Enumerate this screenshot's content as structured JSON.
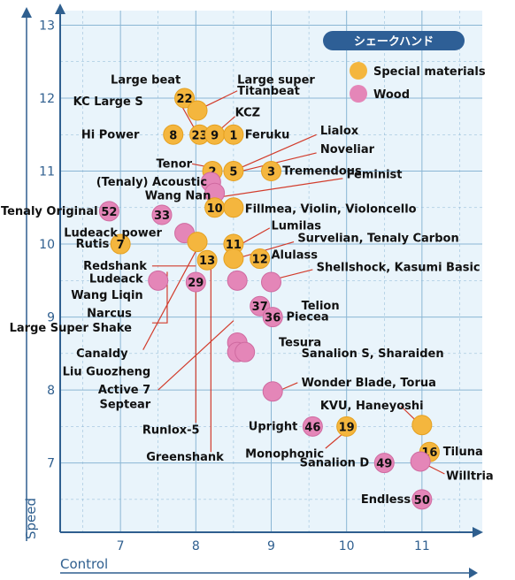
{
  "chart_data": {
    "type": "scatter",
    "xlabel": "Control",
    "ylabel": "Speed",
    "xlim": [
      6.2,
      11.8
    ],
    "ylim": [
      6.05,
      13.2
    ],
    "x_ticks": [
      7,
      8,
      9,
      10,
      11
    ],
    "y_ticks": [
      7,
      8,
      9,
      10,
      11,
      12,
      13
    ],
    "grid": true,
    "legend": {
      "title": "シェークハンド",
      "position": "top-right",
      "entries": [
        {
          "name": "Special materials",
          "color": "#f4b63e"
        },
        {
          "name": "Wood",
          "color": "#e486b8"
        }
      ]
    },
    "points": [
      {
        "series": 0,
        "x": 7.85,
        "y": 12.0,
        "num": "22"
      },
      {
        "series": 0,
        "x": 8.02,
        "y": 11.83,
        "num": ""
      },
      {
        "series": 0,
        "x": 7.7,
        "y": 11.5,
        "num": "8"
      },
      {
        "series": 0,
        "x": 8.05,
        "y": 11.5,
        "num": "23"
      },
      {
        "series": 0,
        "x": 8.25,
        "y": 11.5,
        "num": "9"
      },
      {
        "series": 0,
        "x": 8.5,
        "y": 11.5,
        "num": "1"
      },
      {
        "series": 0,
        "x": 8.22,
        "y": 11.0,
        "num": "2"
      },
      {
        "series": 0,
        "x": 8.5,
        "y": 11.0,
        "num": "5"
      },
      {
        "series": 0,
        "x": 9.0,
        "y": 11.0,
        "num": "3"
      },
      {
        "series": 1,
        "x": 8.2,
        "y": 10.85,
        "num": ""
      },
      {
        "series": 1,
        "x": 8.25,
        "y": 10.7,
        "num": ""
      },
      {
        "series": 0,
        "x": 8.25,
        "y": 10.5,
        "num": "10"
      },
      {
        "series": 0,
        "x": 8.5,
        "y": 10.5,
        "num": ""
      },
      {
        "series": 1,
        "x": 6.85,
        "y": 10.45,
        "num": "52"
      },
      {
        "series": 1,
        "x": 7.55,
        "y": 10.4,
        "num": "33"
      },
      {
        "series": 1,
        "x": 7.85,
        "y": 10.15,
        "num": ""
      },
      {
        "series": 0,
        "x": 8.02,
        "y": 10.03,
        "num": ""
      },
      {
        "series": 0,
        "x": 7.0,
        "y": 10.0,
        "num": "7"
      },
      {
        "series": 0,
        "x": 8.5,
        "y": 10.0,
        "num": "11"
      },
      {
        "series": 0,
        "x": 8.5,
        "y": 9.8,
        "num": ""
      },
      {
        "series": 0,
        "x": 8.15,
        "y": 9.78,
        "num": "13"
      },
      {
        "series": 0,
        "x": 8.85,
        "y": 9.8,
        "num": "12"
      },
      {
        "series": 1,
        "x": 7.5,
        "y": 9.5,
        "num": ""
      },
      {
        "series": 1,
        "x": 8.0,
        "y": 9.48,
        "num": "29"
      },
      {
        "series": 1,
        "x": 8.55,
        "y": 9.5,
        "num": ""
      },
      {
        "series": 1,
        "x": 9.0,
        "y": 9.48,
        "num": ""
      },
      {
        "series": 1,
        "x": 8.85,
        "y": 9.15,
        "num": "37"
      },
      {
        "series": 1,
        "x": 9.02,
        "y": 9.0,
        "num": "36"
      },
      {
        "series": 1,
        "x": 8.55,
        "y": 8.65,
        "num": ""
      },
      {
        "series": 1,
        "x": 8.55,
        "y": 8.52,
        "num": ""
      },
      {
        "series": 1,
        "x": 8.65,
        "y": 8.52,
        "num": ""
      },
      {
        "series": 1,
        "x": 9.02,
        "y": 7.98,
        "num": ""
      },
      {
        "series": 1,
        "x": 9.55,
        "y": 7.5,
        "num": "46"
      },
      {
        "series": 0,
        "x": 10.0,
        "y": 7.5,
        "num": "19"
      },
      {
        "series": 0,
        "x": 11.0,
        "y": 7.52,
        "num": ""
      },
      {
        "series": 0,
        "x": 11.1,
        "y": 7.15,
        "num": "16"
      },
      {
        "series": 1,
        "x": 10.5,
        "y": 7.0,
        "num": "49"
      },
      {
        "series": 1,
        "x": 10.98,
        "y": 7.02,
        "num": ""
      },
      {
        "series": 1,
        "x": 11.0,
        "y": 6.5,
        "num": "50"
      }
    ],
    "labels": [
      {
        "text": "Large beat",
        "x": 7.8,
        "y": 12.25,
        "anchor": "end",
        "line": [
          7.82,
          12.12,
          7.85,
          12.05
        ]
      },
      {
        "text": "Large super",
        "x": 8.55,
        "y": 12.25,
        "anchor": "start"
      },
      {
        "text": "Titanbeat",
        "x": 8.55,
        "y": 12.1,
        "anchor": "start",
        "line": [
          8.55,
          12.1,
          8.05,
          11.85
        ]
      },
      {
        "text": "KC Large S",
        "x": 7.3,
        "y": 11.95,
        "anchor": "end",
        "line": [
          7.82,
          11.88,
          8.0,
          11.55
        ]
      },
      {
        "text": "KCZ",
        "x": 8.52,
        "y": 11.8,
        "anchor": "start",
        "line": [
          8.52,
          11.75,
          8.3,
          11.55
        ]
      },
      {
        "text": "Hi Power",
        "x": 7.25,
        "y": 11.5,
        "anchor": "end"
      },
      {
        "text": "Feruku",
        "x": 8.65,
        "y": 11.5,
        "anchor": "start"
      },
      {
        "text": "Lialox",
        "x": 9.65,
        "y": 11.55,
        "anchor": "start",
        "line": [
          9.6,
          11.5,
          8.6,
          11.05
        ]
      },
      {
        "text": "Noveliar",
        "x": 9.65,
        "y": 11.3,
        "anchor": "start",
        "line": [
          9.6,
          11.25,
          8.6,
          11.0
        ]
      },
      {
        "text": "Tenor",
        "x": 7.95,
        "y": 11.1,
        "anchor": "end",
        "line": [
          7.95,
          11.1,
          8.2,
          11.05
        ]
      },
      {
        "text": "Tremendous",
        "x": 9.15,
        "y": 11.0,
        "anchor": "start"
      },
      {
        "text": "(Tenaly) Acoustic",
        "x": 8.15,
        "y": 10.85,
        "anchor": "end"
      },
      {
        "text": "Feminist",
        "x": 10.0,
        "y": 10.95,
        "anchor": "start",
        "line": [
          9.95,
          10.9,
          8.35,
          10.65
        ]
      },
      {
        "text": "Wang Nan",
        "x": 8.2,
        "y": 10.66,
        "anchor": "end"
      },
      {
        "text": "Fillmea, Violin, Violoncello",
        "x": 8.65,
        "y": 10.48,
        "anchor": "start"
      },
      {
        "text": "Tenaly Original",
        "x": 6.7,
        "y": 10.45,
        "anchor": "end"
      },
      {
        "text": "Lumilas",
        "x": 9.0,
        "y": 10.25,
        "anchor": "start",
        "line": [
          8.98,
          10.22,
          8.6,
          10.0
        ]
      },
      {
        "text": "Ludeack power",
        "x": 7.55,
        "y": 10.15,
        "anchor": "end"
      },
      {
        "text": "Survelian, Tenaly Carbon",
        "x": 9.35,
        "y": 10.08,
        "anchor": "start",
        "line": [
          9.3,
          10.03,
          8.6,
          9.82
        ]
      },
      {
        "text": "Rutis",
        "x": 6.85,
        "y": 10.0,
        "anchor": "end"
      },
      {
        "text": "Alulass",
        "x": 9.0,
        "y": 9.85,
        "anchor": "start"
      },
      {
        "text": "Redshank",
        "x": 7.35,
        "y": 9.7,
        "anchor": "end",
        "line": [
          7.42,
          9.7,
          8.0,
          9.7
        ]
      },
      {
        "text": "Shellshock, Kasumi Basic",
        "x": 9.6,
        "y": 9.68,
        "anchor": "start",
        "line": [
          9.55,
          9.65,
          9.05,
          9.52
        ]
      },
      {
        "text": "Ludeack",
        "x": 7.3,
        "y": 9.52,
        "anchor": "end"
      },
      {
        "text": "Telion",
        "x": 9.4,
        "y": 9.15,
        "anchor": "start"
      },
      {
        "text": "Wang Liqin",
        "x": 7.3,
        "y": 9.3,
        "anchor": "end"
      },
      {
        "text": "Narcus",
        "x": 7.15,
        "y": 9.05,
        "anchor": "end"
      },
      {
        "text": "Piecea",
        "x": 9.2,
        "y": 9.0,
        "anchor": "start"
      },
      {
        "text": "Large Super Shake",
        "x": 7.15,
        "y": 8.85,
        "anchor": "end"
      },
      {
        "text": "Tesura",
        "x": 9.1,
        "y": 8.65,
        "anchor": "start"
      },
      {
        "text": "Canaldy",
        "x": 7.1,
        "y": 8.5,
        "anchor": "end"
      },
      {
        "text": "Sanalion S, Sharaiden",
        "x": 9.4,
        "y": 8.5,
        "anchor": "start"
      },
      {
        "text": "Liu Guozheng",
        "x": 7.4,
        "y": 8.25,
        "anchor": "end"
      },
      {
        "text": "Wonder Blade, Torua",
        "x": 9.4,
        "y": 8.1,
        "anchor": "start",
        "line": [
          9.35,
          8.1,
          9.08,
          7.98
        ]
      },
      {
        "text": "Active 7",
        "x": 7.4,
        "y": 8.0,
        "anchor": "end"
      },
      {
        "text": "Septear",
        "x": 7.4,
        "y": 7.8,
        "anchor": "end"
      },
      {
        "text": "KVU, Haneyoshi",
        "x": 9.65,
        "y": 7.78,
        "anchor": "start",
        "line": [
          10.72,
          7.78,
          10.9,
          7.6
        ]
      },
      {
        "text": "Upright",
        "x": 9.35,
        "y": 7.5,
        "anchor": "end"
      },
      {
        "text": "Runlox-5",
        "x": 8.05,
        "y": 7.45,
        "anchor": "end"
      },
      {
        "text": "Monophonic",
        "x": 9.7,
        "y": 7.12,
        "anchor": "end",
        "line": [
          9.72,
          7.2,
          9.95,
          7.4
        ]
      },
      {
        "text": "Tiluna",
        "x": 11.28,
        "y": 7.15,
        "anchor": "start"
      },
      {
        "text": "Greenshank",
        "x": 8.37,
        "y": 7.08,
        "anchor": "end"
      },
      {
        "text": "Sanalion D",
        "x": 10.3,
        "y": 7.0,
        "anchor": "end"
      },
      {
        "text": "Willtria",
        "x": 11.32,
        "y": 6.82,
        "anchor": "start",
        "line": [
          11.3,
          6.85,
          11.05,
          6.98
        ]
      },
      {
        "text": "Endless",
        "x": 10.85,
        "y": 6.5,
        "anchor": "end"
      }
    ]
  },
  "colors": {
    "background_fill": "#e9f4fb",
    "grid": "#8ab6d4",
    "axis": "#2f5f8f",
    "special_fill": "#f4b63e",
    "special_stroke": "#e5a020",
    "wood_fill": "#e486b8",
    "wood_stroke": "#cf6aa0",
    "legend_title_bg": "#2e5f96",
    "leader": "#d23c2c"
  }
}
